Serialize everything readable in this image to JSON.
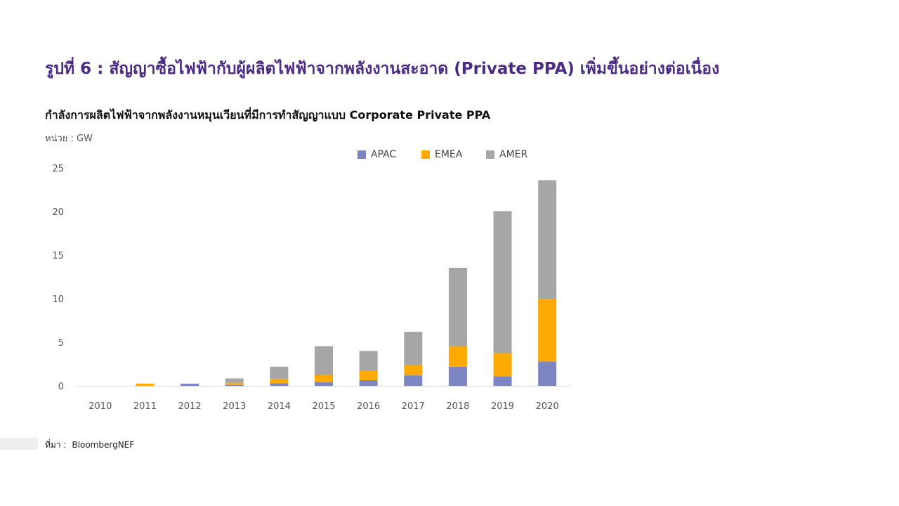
{
  "figure_title": "รูปที่ 6 : สัญญาซื้อไฟฟ้ากับผู้ผลิตไฟฟ้าจากพลังงานสะอาด (Private PPA) เพิ่มขึ้นอย่างต่อเนื่อง",
  "unit_label": "หน่วย : GW",
  "source": {
    "label": "ที่มา :",
    "value": "BloombergNEF"
  },
  "colors": {
    "title": "#4B2C83",
    "APAC": "#7B86C0",
    "EMEA": "#FFAA00",
    "AMER": "#A6A6A6"
  },
  "chart_data": {
    "type": "bar",
    "stacked": true,
    "title": "กำลังการผลิตไฟฟ้าจากพลังงานหมุนเวียนที่มีการทำสัญญาแบบ Corporate Private PPA",
    "ylabel": "หน่วย : GW",
    "ylim": [
      0,
      25
    ],
    "yticks": [
      "0",
      "5",
      "10",
      "15",
      "20",
      "25"
    ],
    "grid": false,
    "legend_position": "top",
    "categories": [
      "2010",
      "2011",
      "2012",
      "2013",
      "2014",
      "2015",
      "2016",
      "2017",
      "2018",
      "2019",
      "2020"
    ],
    "series": [
      {
        "name": "APAC",
        "color": "#7B86C0",
        "values": [
          0,
          0,
          0.25,
          0.1,
          0.3,
          0.4,
          0.65,
          1.2,
          2.2,
          1.1,
          2.8
        ]
      },
      {
        "name": "EMEA",
        "color": "#FFAA00",
        "values": [
          0,
          0.25,
          0,
          0.25,
          0.45,
          0.85,
          1.05,
          1.15,
          2.35,
          2.65,
          7.2
        ]
      },
      {
        "name": "AMER",
        "color": "#A6A6A6",
        "values": [
          0,
          0,
          0,
          0.5,
          1.45,
          3.3,
          2.3,
          3.85,
          9.0,
          16.3,
          13.6
        ]
      }
    ]
  }
}
